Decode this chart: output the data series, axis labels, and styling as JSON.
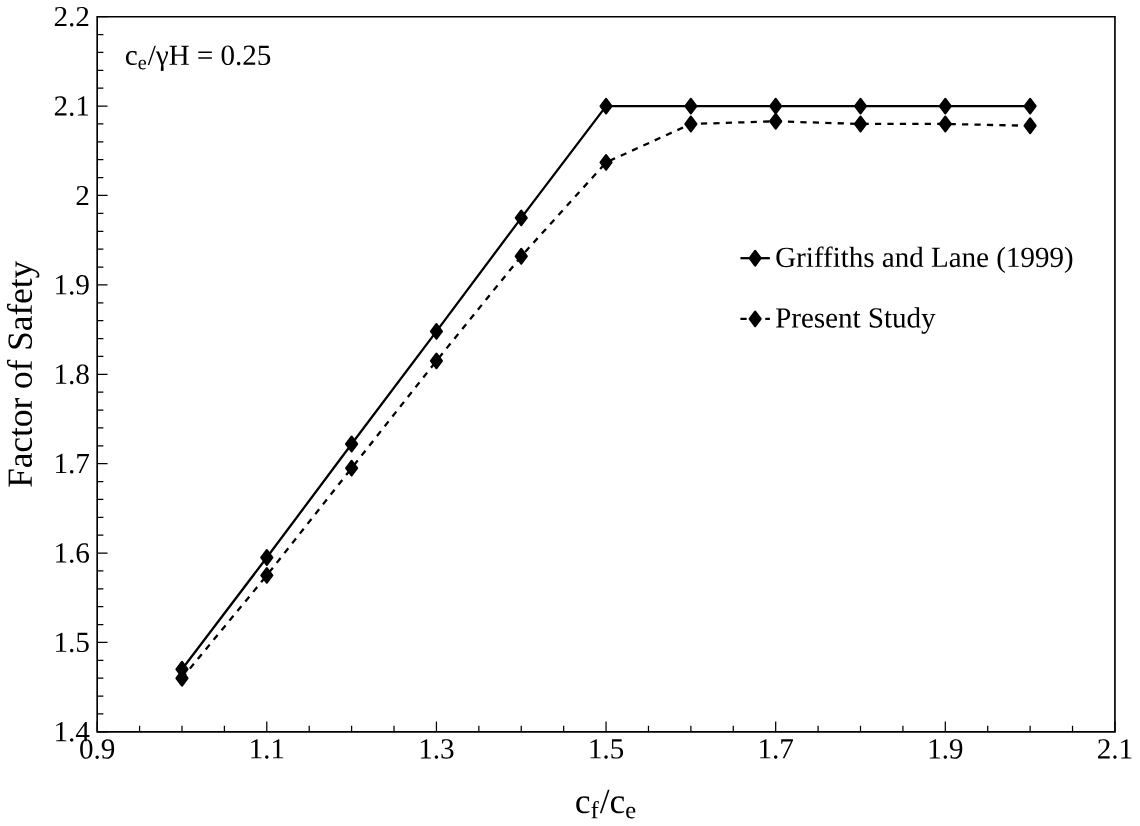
{
  "chart_data": {
    "type": "line",
    "xlabel": "c$_{f}$/c$_{e}$",
    "ylabel": "Factor of Safety",
    "annotations": [
      "c$_{e}$/γH = 0.25"
    ],
    "x": [
      1.0,
      1.1,
      1.2,
      1.3,
      1.4,
      1.5,
      1.6,
      1.7,
      1.8,
      1.9,
      2.0
    ],
    "series": [
      {
        "name": "Griffiths and Lane (1999)",
        "color": "#000000",
        "line_style": "solid",
        "values": [
          1.47,
          1.595,
          1.722,
          1.848,
          1.975,
          2.1,
          2.1,
          2.1,
          2.1,
          2.1,
          2.1
        ]
      },
      {
        "name": "Present Study",
        "color": "#000000",
        "line_style": "dashed",
        "values": [
          1.46,
          1.575,
          1.695,
          1.815,
          1.932,
          2.037,
          2.08,
          2.083,
          2.08,
          2.08,
          2.078
        ]
      }
    ],
    "xlim": [
      0.9,
      2.1
    ],
    "ylim": [
      1.4,
      2.2
    ],
    "xticks": [
      0.9,
      1.1,
      1.3,
      1.5,
      1.7,
      1.9,
      2.1
    ],
    "yticks": [
      1.4,
      1.5,
      1.6,
      1.7,
      1.8,
      1.9,
      2,
      2.1,
      2.2
    ],
    "marker": "diamond",
    "grid": false,
    "legend": "center right"
  }
}
